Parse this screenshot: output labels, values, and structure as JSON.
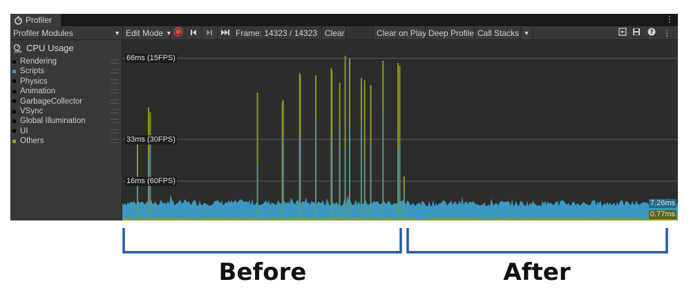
{
  "window": {
    "tab_title": "Profiler",
    "tab_icon": "stopwatch-icon",
    "menu_icon": "kebab-menu-icon"
  },
  "toolbar": {
    "modules_label": "Profiler Modules",
    "edit_mode_label": "Edit Mode",
    "record_icon": "record-icon",
    "prev_icon": "step-back-icon",
    "next_icon": "step-forward-icon",
    "current_icon": "skip-to-end-icon",
    "frame_label": "Frame: 14323 / 14323",
    "clear_label": "Clear",
    "clear_on_play_label": "Clear on Play",
    "deep_profile_label": "Deep Profile",
    "call_stacks_label": "Call Stacks",
    "load_icon": "load-icon",
    "save_icon": "save-icon",
    "help_icon": "help-icon",
    "more_icon": "kebab-menu-icon"
  },
  "module": {
    "title": "CPU Usage",
    "icon": "cpu-icon",
    "legend": [
      {
        "label": "Rendering",
        "color": "#0a0a0a"
      },
      {
        "label": "Scripts",
        "color": "#3a98c2"
      },
      {
        "label": "Physics",
        "color": "#0a0a0a"
      },
      {
        "label": "Animation",
        "color": "#0a0a0a"
      },
      {
        "label": "GarbageCollector",
        "color": "#0a0a0a"
      },
      {
        "label": "VSync",
        "color": "#0a0a0a"
      },
      {
        "label": "Global Illumination",
        "color": "#0a0a0a"
      },
      {
        "label": "UI",
        "color": "#0a0a0a"
      },
      {
        "label": "Others",
        "color": "#8f9a1c"
      }
    ]
  },
  "chart_data": {
    "type": "area",
    "y_unit": "ms",
    "y_max": 70,
    "grid_lines": [
      {
        "value": 66,
        "label": "66ms (15FPS)"
      },
      {
        "value": 33,
        "label": "33ms (30FPS)"
      },
      {
        "value": 16,
        "label": "16ms (60FPS)"
      }
    ],
    "series": [
      {
        "name": "Scripts",
        "color": "#3a98c2",
        "baseline_ms": 7.26
      },
      {
        "name": "Others",
        "color": "#8f9a1c",
        "baseline_ms": 0.77
      }
    ],
    "current_values": [
      {
        "series": "Scripts",
        "label": "7.26ms"
      },
      {
        "series": "Others",
        "label": "0.77ms"
      }
    ],
    "spikes": [
      {
        "x": 0.026,
        "ms": 32
      },
      {
        "x": 0.046,
        "ms": 46
      },
      {
        "x": 0.049,
        "ms": 44
      },
      {
        "x": 0.242,
        "ms": 52
      },
      {
        "x": 0.287,
        "ms": 48
      },
      {
        "x": 0.288,
        "ms": 49
      },
      {
        "x": 0.318,
        "ms": 60
      },
      {
        "x": 0.319,
        "ms": 59
      },
      {
        "x": 0.347,
        "ms": 59
      },
      {
        "x": 0.375,
        "ms": 62
      },
      {
        "x": 0.376,
        "ms": 61
      },
      {
        "x": 0.39,
        "ms": 56
      },
      {
        "x": 0.4,
        "ms": 67
      },
      {
        "x": 0.408,
        "ms": 66
      },
      {
        "x": 0.429,
        "ms": 58
      },
      {
        "x": 0.435,
        "ms": 57
      },
      {
        "x": 0.446,
        "ms": 55
      },
      {
        "x": 0.468,
        "ms": 65
      },
      {
        "x": 0.495,
        "ms": 64
      },
      {
        "x": 0.498,
        "ms": 63
      },
      {
        "x": 0.506,
        "ms": 18
      }
    ]
  },
  "annotations": {
    "before_label": "Before",
    "after_label": "After",
    "bracket_color": "#1f5aa6"
  }
}
